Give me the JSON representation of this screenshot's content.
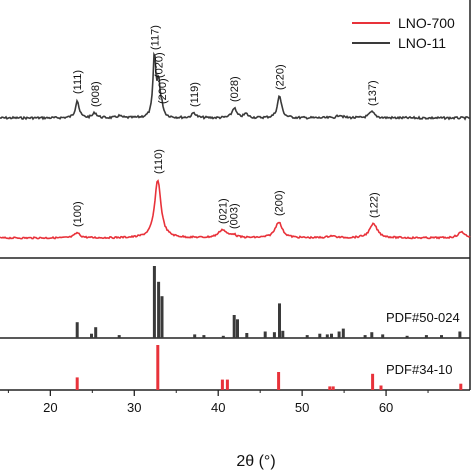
{
  "chart_data": {
    "type": "line",
    "xlabel": "2θ (°)",
    "xlim": [
      14,
      70
    ],
    "x_ticks": [
      20,
      30,
      40,
      50,
      60
    ],
    "legend": {
      "placement": "top-right",
      "entries": [
        {
          "name": "LNO-700",
          "color": "#e8323a"
        },
        {
          "name": "LNO-11",
          "color": "#3a3a3a"
        }
      ]
    },
    "panels": [
      {
        "id": "lno-11",
        "kind": "pattern",
        "color": "#3a3a3a",
        "baseline": 118,
        "noise": 1.1,
        "peaks": [
          {
            "x": 23.2,
            "h": 18,
            "w": 0.25,
            "label": "(111)"
          },
          {
            "x": 25.3,
            "h": 5,
            "w": 0.3,
            "label": "(008)"
          },
          {
            "x": 28.2,
            "h": 2,
            "w": 0.3
          },
          {
            "x": 32.4,
            "h": 62,
            "w": 0.2,
            "label": "(117)"
          },
          {
            "x": 32.9,
            "h": 34,
            "w": 0.2,
            "label": "(020)"
          },
          {
            "x": 33.3,
            "h": 8,
            "w": 0.2,
            "label": "(200)"
          },
          {
            "x": 37.1,
            "h": 5,
            "w": 0.3,
            "label": "(119)"
          },
          {
            "x": 41.9,
            "h": 10,
            "w": 0.3,
            "label": "(028)"
          },
          {
            "x": 43.3,
            "h": 4,
            "w": 0.3
          },
          {
            "x": 47.3,
            "h": 22,
            "w": 0.3,
            "label": "(220)"
          },
          {
            "x": 54.5,
            "h": 3,
            "w": 0.35
          },
          {
            "x": 58.3,
            "h": 6,
            "w": 0.4,
            "label": "(137)"
          }
        ]
      },
      {
        "id": "lno-700",
        "kind": "pattern",
        "color": "#e8323a",
        "baseline": 238,
        "noise": 0.8,
        "peaks": [
          {
            "x": 23.2,
            "h": 5,
            "w": 0.4,
            "label": "(100)"
          },
          {
            "x": 32.8,
            "h": 58,
            "w": 0.45,
            "label": "(110)"
          },
          {
            "x": 40.5,
            "h": 8,
            "w": 0.55,
            "label": "(021)"
          },
          {
            "x": 41.8,
            "h": 3,
            "w": 0.4,
            "label": "(003)"
          },
          {
            "x": 47.2,
            "h": 16,
            "w": 0.5,
            "label": "(200)"
          },
          {
            "x": 53.5,
            "h": 2,
            "w": 0.5
          },
          {
            "x": 58.5,
            "h": 14,
            "w": 0.55,
            "label": "(122)"
          },
          {
            "x": 69.0,
            "h": 6,
            "w": 0.5
          }
        ]
      },
      {
        "id": "pdf-50",
        "kind": "sticks",
        "color": "#3a3a3a",
        "label": "PDF#50-024",
        "sticks": [
          {
            "x": 23.2,
            "h": 0.22
          },
          {
            "x": 24.9,
            "h": 0.06
          },
          {
            "x": 25.4,
            "h": 0.15
          },
          {
            "x": 28.2,
            "h": 0.04
          },
          {
            "x": 32.4,
            "h": 1.0
          },
          {
            "x": 32.9,
            "h": 0.78
          },
          {
            "x": 33.3,
            "h": 0.58
          },
          {
            "x": 37.2,
            "h": 0.05
          },
          {
            "x": 38.3,
            "h": 0.04
          },
          {
            "x": 40.6,
            "h": 0.03
          },
          {
            "x": 41.9,
            "h": 0.32
          },
          {
            "x": 42.3,
            "h": 0.26
          },
          {
            "x": 43.4,
            "h": 0.07
          },
          {
            "x": 45.6,
            "h": 0.09
          },
          {
            "x": 46.7,
            "h": 0.08
          },
          {
            "x": 47.3,
            "h": 0.48
          },
          {
            "x": 47.7,
            "h": 0.1
          },
          {
            "x": 50.6,
            "h": 0.04
          },
          {
            "x": 52.1,
            "h": 0.06
          },
          {
            "x": 53.0,
            "h": 0.05
          },
          {
            "x": 53.5,
            "h": 0.06
          },
          {
            "x": 54.4,
            "h": 0.09
          },
          {
            "x": 54.9,
            "h": 0.13
          },
          {
            "x": 57.5,
            "h": 0.04
          },
          {
            "x": 58.3,
            "h": 0.08
          },
          {
            "x": 59.6,
            "h": 0.05
          },
          {
            "x": 62.5,
            "h": 0.03
          },
          {
            "x": 64.8,
            "h": 0.04
          },
          {
            "x": 66.6,
            "h": 0.04
          },
          {
            "x": 68.8,
            "h": 0.09
          }
        ]
      },
      {
        "id": "pdf-34",
        "kind": "sticks",
        "color": "#e8323a",
        "label": "PDF#34-10",
        "sticks": [
          {
            "x": 23.2,
            "h": 0.28
          },
          {
            "x": 32.8,
            "h": 1.0
          },
          {
            "x": 40.5,
            "h": 0.23
          },
          {
            "x": 41.1,
            "h": 0.23
          },
          {
            "x": 47.2,
            "h": 0.4
          },
          {
            "x": 53.3,
            "h": 0.08
          },
          {
            "x": 53.7,
            "h": 0.08
          },
          {
            "x": 58.4,
            "h": 0.36
          },
          {
            "x": 59.4,
            "h": 0.1
          },
          {
            "x": 68.9,
            "h": 0.14
          }
        ]
      }
    ]
  }
}
